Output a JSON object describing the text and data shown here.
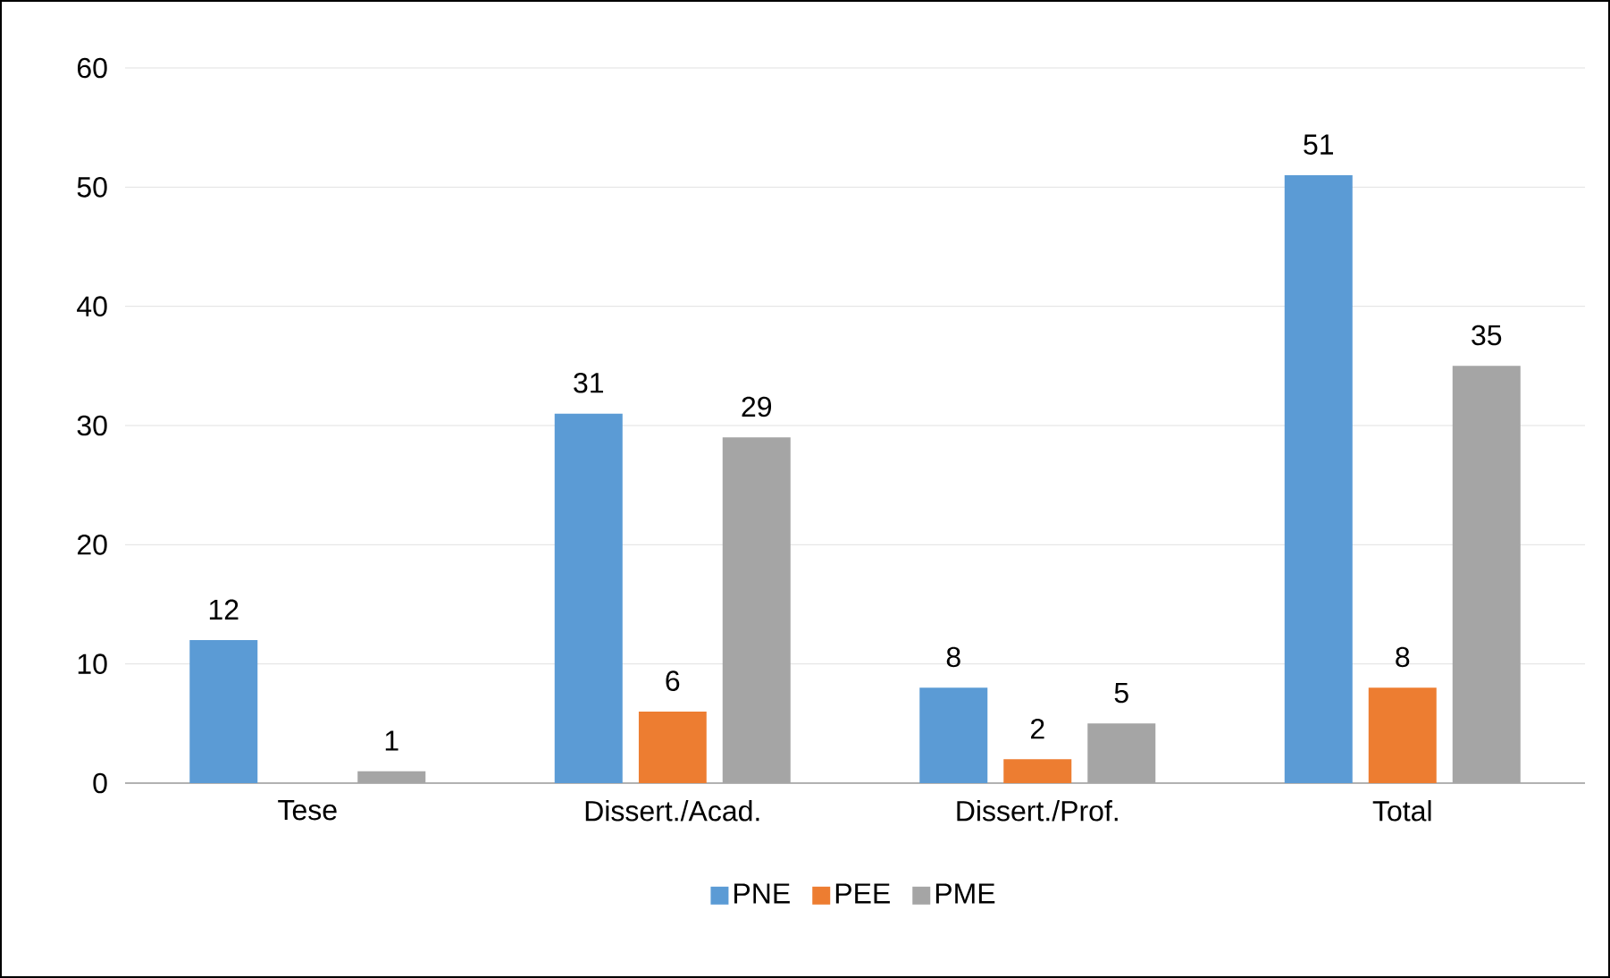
{
  "chart_data": {
    "type": "bar",
    "categories": [
      "Tese",
      "Dissert./Acad.",
      "Dissert./Prof.",
      "Total"
    ],
    "series": [
      {
        "name": "PNE",
        "color": "#5b9bd5",
        "values": [
          12,
          31,
          8,
          51
        ]
      },
      {
        "name": "PEE",
        "color": "#ed7d31",
        "values": [
          null,
          6,
          2,
          8
        ]
      },
      {
        "name": "PME",
        "color": "#a5a5a5",
        "values": [
          1,
          29,
          5,
          35
        ]
      }
    ],
    "ylim": [
      0,
      60
    ],
    "yticks": [
      0,
      10,
      20,
      30,
      40,
      50,
      60
    ],
    "grid": "y",
    "legend": "bottom",
    "data_labels": true
  }
}
